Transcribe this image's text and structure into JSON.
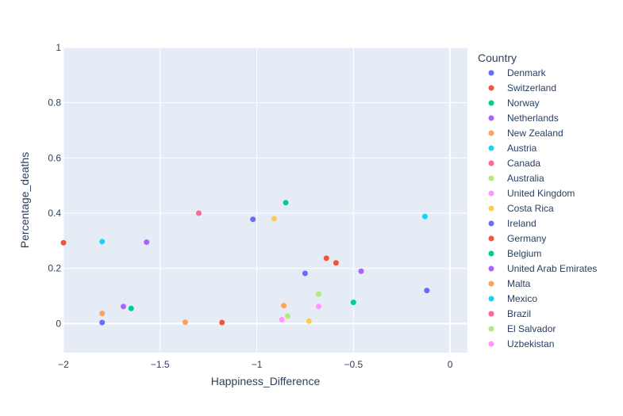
{
  "chart_data": {
    "type": "scatter",
    "xlabel": "Happiness_Difference",
    "ylabel": "Percentage_deaths",
    "legend_title": "Country",
    "legend_position": "right",
    "grid": true,
    "xlim": [
      -2,
      0.09
    ],
    "ylim": [
      -0.105,
      1
    ],
    "x_ticks": [
      {
        "value": -2,
        "label": "−2"
      },
      {
        "value": -1.5,
        "label": "−1.5"
      },
      {
        "value": -1,
        "label": "−1"
      },
      {
        "value": -0.5,
        "label": "−0.5"
      },
      {
        "value": 0,
        "label": "0"
      }
    ],
    "y_ticks": [
      {
        "value": 0,
        "label": "0"
      },
      {
        "value": 0.2,
        "label": "0.2"
      },
      {
        "value": 0.4,
        "label": "0.4"
      },
      {
        "value": 0.6,
        "label": "0.6"
      },
      {
        "value": 0.8,
        "label": "0.8"
      },
      {
        "value": 1,
        "label": "1"
      }
    ],
    "series": [
      {
        "name": "Denmark",
        "color": "#636efa",
        "points": [
          [
            -0.12,
            0.12
          ]
        ]
      },
      {
        "name": "Switzerland",
        "color": "#ef553b",
        "points": [
          [
            -0.59,
            0.22
          ]
        ]
      },
      {
        "name": "Norway",
        "color": "#00cc96",
        "points": [
          [
            -0.85,
            0.438
          ]
        ]
      },
      {
        "name": "Netherlands",
        "color": "#ab63fa",
        "points": [
          [
            -0.46,
            0.19
          ]
        ]
      },
      {
        "name": "New Zealand",
        "color": "#ffa15a",
        "points": [
          [
            -1.8,
            0.037
          ]
        ]
      },
      {
        "name": "Austria",
        "color": "#19d3f3",
        "points": [
          [
            -0.13,
            0.388
          ]
        ]
      },
      {
        "name": "Canada",
        "color": "#ff6692",
        "points": [
          [
            -1.3,
            0.4
          ]
        ]
      },
      {
        "name": "Australia",
        "color": "#b6e880",
        "points": [
          [
            -0.84,
            0.027
          ]
        ]
      },
      {
        "name": "United Kingdom",
        "color": "#ff97ff",
        "points": [
          [
            -0.87,
            0.014
          ]
        ]
      },
      {
        "name": "Costa Rica",
        "color": "#fecb52",
        "points": [
          [
            -0.73,
            0.009
          ],
          [
            -0.91,
            0.38
          ]
        ]
      },
      {
        "name": "Ireland",
        "color": "#636efa",
        "points": [
          [
            -1.8,
            0.004
          ],
          [
            -1.02,
            0.378
          ],
          [
            -0.75,
            0.182
          ]
        ]
      },
      {
        "name": "Germany",
        "color": "#ef553b",
        "points": [
          [
            -1.18,
            0.004
          ],
          [
            -2.0,
            0.293
          ],
          [
            -0.64,
            0.237
          ]
        ]
      },
      {
        "name": "Belgium",
        "color": "#00cc96",
        "points": [
          [
            -1.65,
            0.055
          ],
          [
            -0.5,
            0.077
          ]
        ]
      },
      {
        "name": "United Arab Emirates",
        "color": "#ab63fa",
        "points": [
          [
            -1.69,
            0.062
          ],
          [
            -1.57,
            0.295
          ]
        ]
      },
      {
        "name": "Malta",
        "color": "#ffa15a",
        "points": [
          [
            -1.37,
            0.005
          ],
          [
            -0.86,
            0.065
          ]
        ]
      },
      {
        "name": "Mexico",
        "color": "#19d3f3",
        "points": [
          [
            -1.8,
            0.297
          ]
        ]
      },
      {
        "name": "Brazil",
        "color": "#ff6692",
        "points": []
      },
      {
        "name": "El Salvador",
        "color": "#b6e880",
        "points": [
          [
            -0.68,
            0.107
          ]
        ]
      },
      {
        "name": "Uzbekistan",
        "color": "#ff97ff",
        "points": [
          [
            -0.68,
            0.062
          ]
        ]
      }
    ]
  }
}
